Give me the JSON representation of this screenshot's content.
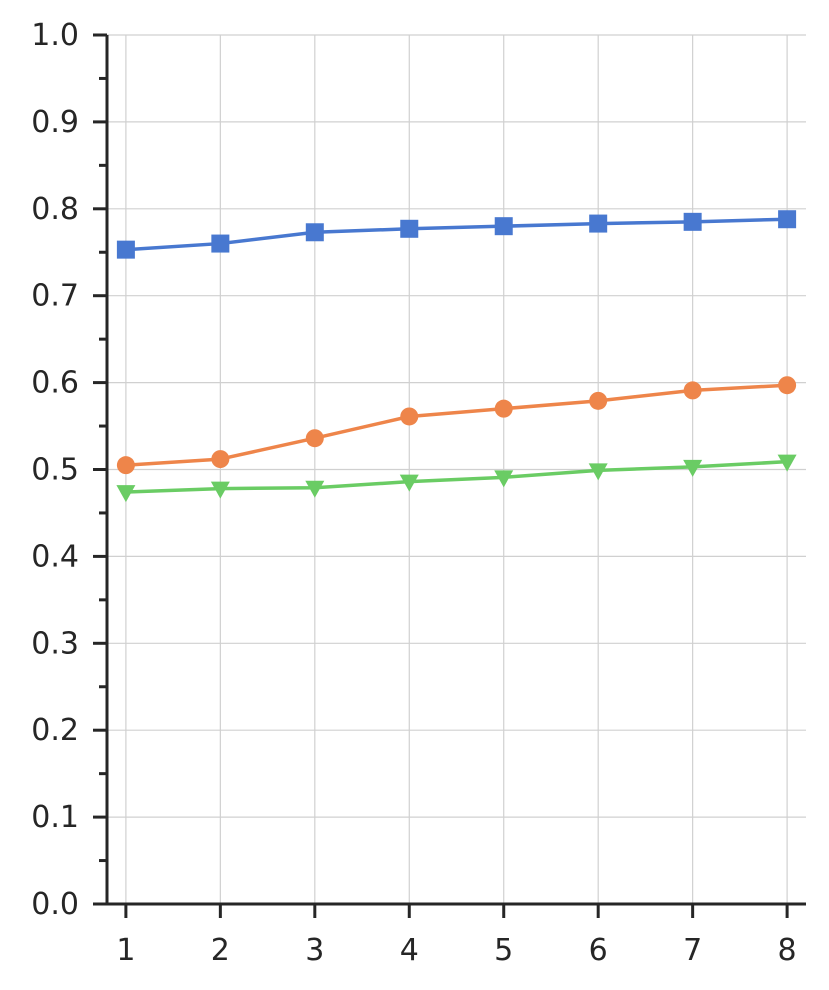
{
  "chart_data": {
    "type": "line",
    "title": "",
    "xlabel": "",
    "ylabel": "",
    "x": [
      1,
      2,
      3,
      4,
      5,
      6,
      7,
      8
    ],
    "xlim": [
      0.8,
      8.2
    ],
    "ylim": [
      0.0,
      1.0
    ],
    "x_ticks": [
      "1",
      "2",
      "3",
      "4",
      "5",
      "6",
      "7",
      "8"
    ],
    "y_ticks": [
      "0.0",
      "0.1",
      "0.2",
      "0.3",
      "0.4",
      "0.5",
      "0.6",
      "0.7",
      "0.8",
      "0.9",
      "1.0"
    ],
    "y_tick_values": [
      0.0,
      0.1,
      0.2,
      0.3,
      0.4,
      0.5,
      0.6,
      0.7,
      0.8,
      0.9,
      1.0
    ],
    "y_minor_step": 0.05,
    "grid": true,
    "legend": "none",
    "series": [
      {
        "marker": "square",
        "color": "#4878d0",
        "values": [
          0.753,
          0.76,
          0.773,
          0.777,
          0.78,
          0.783,
          0.785,
          0.788
        ]
      },
      {
        "marker": "circle",
        "color": "#ee854a",
        "values": [
          0.505,
          0.512,
          0.536,
          0.561,
          0.57,
          0.579,
          0.591,
          0.597
        ]
      },
      {
        "marker": "triangle-down",
        "color": "#6acc64",
        "values": [
          0.474,
          0.478,
          0.479,
          0.486,
          0.491,
          0.499,
          0.503,
          0.509
        ]
      }
    ]
  }
}
